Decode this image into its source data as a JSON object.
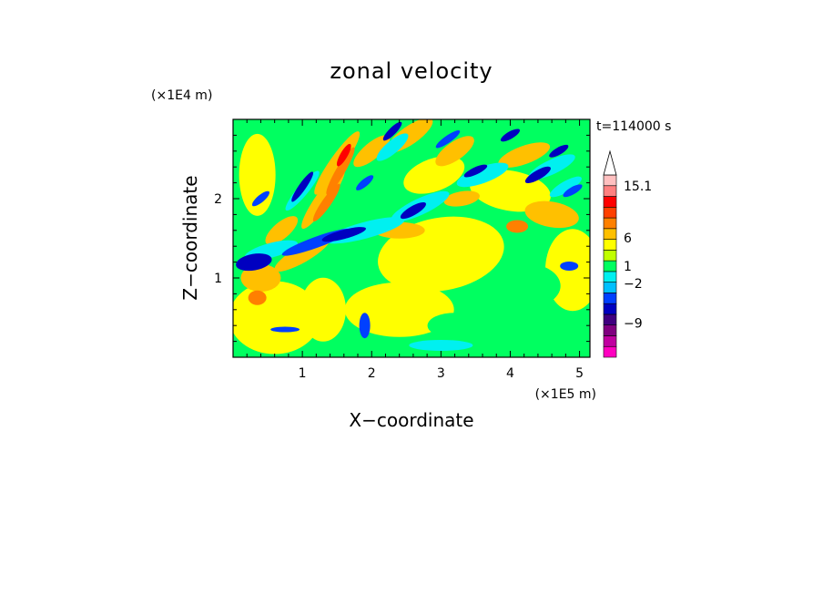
{
  "chart_data": {
    "type": "heatmap",
    "title": "zonal velocity",
    "xlabel": "X−coordinate",
    "ylabel": "Z−coordinate",
    "x_unit": "(×1E5 m)",
    "y_unit": "(×1E4 m)",
    "time_label": "t=114000 s",
    "xlim": [
      0,
      5.15
    ],
    "ylim": [
      0,
      3.0
    ],
    "x_ticks": [
      "1",
      "2",
      "3",
      "4",
      "5"
    ],
    "x_tick_values": [
      1,
      2,
      3,
      4,
      5
    ],
    "y_ticks": [
      "1",
      "2"
    ],
    "y_tick_values": [
      1,
      2
    ],
    "colorbar": {
      "labels": [
        "15.1",
        "6",
        "1",
        "−2",
        "−9"
      ],
      "label_values": [
        15.1,
        6,
        1,
        -2,
        -9
      ],
      "range": [
        -15,
        17
      ],
      "extend": "max",
      "colors": [
        "#ff00c0",
        "#c000a0",
        "#800080",
        "#400080",
        "#0000c0",
        "#0040ff",
        "#00c0ff",
        "#00f0f0",
        "#00ff60",
        "#c0ff00",
        "#ffff00",
        "#ffc000",
        "#ff8000",
        "#ff4000",
        "#ff0000",
        "#ff8080",
        "#ffc0c0"
      ]
    },
    "grid": false
  }
}
